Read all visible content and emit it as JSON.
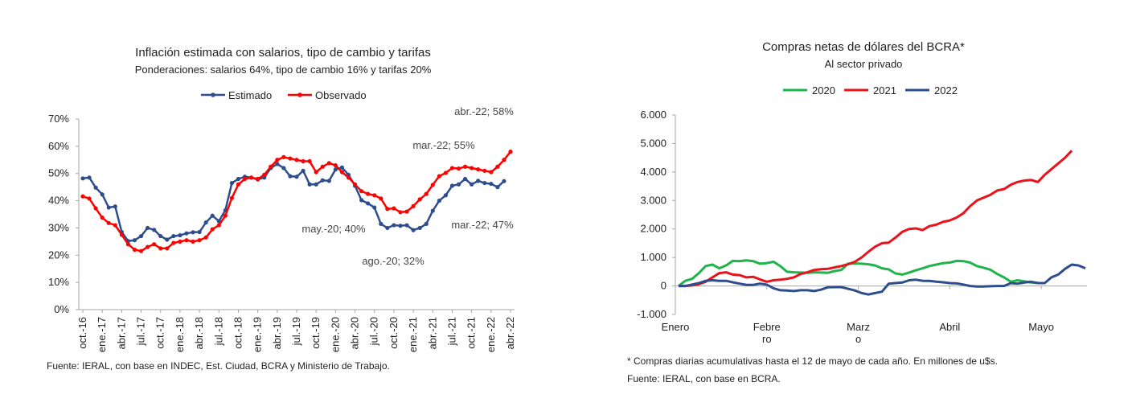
{
  "colors": {
    "estimado": "#2E4D8C",
    "observado": "#FF0000",
    "y2020": "#1FB44B",
    "y2021": "#E8131B",
    "y2022": "#2E4D8C",
    "axis": "#a6a6a6"
  },
  "left_source": "Fuente: IERAL, con base en INDEC, Est. Ciudad, BCRA y Ministerio de Trabajo.",
  "right_footnote": "* Compras diarias acumulativas hasta el 12 de mayo de cada año. En millones de u$s.",
  "right_source": "Fuente: IERAL, con base en BCRA.",
  "chart_data": [
    {
      "type": "line",
      "title": "Inflación estimada con salarios, tipo de cambio y tarifas",
      "subtitle": "Ponderaciones: salarios 64%, tipo de cambio 16% y tarifas 20%",
      "xlabel": "",
      "ylabel": "",
      "ylim": [
        0,
        70
      ],
      "y_ticks": [
        "0%",
        "10%",
        "20%",
        "30%",
        "40%",
        "50%",
        "60%",
        "70%"
      ],
      "x_tick_labels": [
        "oct.-16",
        "ene.-17",
        "abr.-17",
        "jul.-17",
        "oct.-17",
        "ene.-18",
        "abr.-18",
        "jul.-18",
        "oct.-18",
        "ene.-19",
        "abr.-19",
        "jul.-19",
        "oct.-19",
        "ene.-20",
        "abr.-20",
        "jul.-20",
        "oct.-20",
        "ene.-21",
        "abr.-21",
        "jul.-21",
        "oct.-21",
        "ene.-22",
        "abr.-22"
      ],
      "legend_position": "top",
      "series": [
        {
          "name": "Estimado",
          "color_key": "estimado",
          "marker": "circle",
          "values": [
            48.2,
            48.5,
            44.8,
            42.3,
            37.5,
            37.9,
            28.5,
            25.2,
            25.5,
            27.0,
            30.0,
            29.3,
            27.0,
            25.7,
            27.0,
            27.3,
            28.0,
            28.4,
            28.5,
            32.0,
            34.5,
            32.5,
            36.5,
            46.5,
            48.0,
            48.8,
            48.5,
            47.8,
            48.5,
            52.0,
            53.5,
            52.0,
            49.0,
            48.8,
            51.0,
            46.0,
            46.0,
            47.5,
            47.3,
            51.5,
            52.2,
            49.5,
            45.5,
            40.2,
            39.0,
            37.5,
            31.5,
            30.0,
            31.0,
            30.8,
            31.0,
            29.2,
            30.0,
            31.5,
            36.3,
            40.0,
            42.0,
            45.5,
            46.0,
            48.0,
            46.0,
            47.3,
            46.5,
            46.2,
            45.0,
            47.2
          ]
        },
        {
          "name": "Observado",
          "color_key": "observado",
          "marker": "circle",
          "values": [
            41.6,
            40.8,
            37.2,
            33.8,
            31.8,
            31.0,
            27.5,
            24.0,
            22.0,
            21.5,
            23.0,
            24.0,
            22.5,
            22.5,
            24.5,
            25.0,
            25.5,
            25.0,
            25.5,
            26.5,
            29.5,
            31.0,
            34.5,
            41.0,
            46.0,
            48.0,
            48.5,
            48.0,
            49.5,
            52.5,
            55.0,
            56.0,
            55.5,
            55.0,
            54.5,
            54.5,
            50.5,
            52.5,
            53.8,
            53.0,
            50.5,
            48.5,
            46.0,
            43.5,
            42.5,
            42.0,
            40.8,
            37.0,
            37.2,
            35.8,
            36.0,
            38.0,
            40.5,
            42.5,
            45.8,
            49.0,
            50.2,
            52.0,
            51.8,
            52.5,
            52.0,
            51.5,
            51.0,
            50.5,
            52.5,
            55.0,
            58.0
          ]
        }
      ],
      "annotations": [
        {
          "text": "abr.-22; 58%",
          "x_label": "abr.-22",
          "value": 58
        },
        {
          "text": "mar.-22; 55%",
          "x_label": "mar.-22",
          "value": 55
        },
        {
          "text": "may.-20; 40%",
          "x_label": "may.-20",
          "value": 40
        },
        {
          "text": "mar.-22; 47%",
          "x_label": "mar.-22",
          "value": 47
        },
        {
          "text": "ago.-20; 32%",
          "x_label": "ago.-20",
          "value": 32
        }
      ]
    },
    {
      "type": "line",
      "title": "Compras netas de dólares del BCRA*",
      "subtitle": "Al sector privado",
      "xlabel": "",
      "ylabel": "",
      "ylim": [
        -1000,
        6000
      ],
      "y_ticks": [
        "-1.000",
        "0",
        "1.000",
        "2.000",
        "3.000",
        "4.000",
        "5.000",
        "6.000"
      ],
      "x_tick_labels": [
        "Enero",
        "Febre ro",
        "Marz o",
        "Abril",
        "Mayo"
      ],
      "legend_position": "top",
      "series": [
        {
          "name": "2020",
          "color_key": "y2020",
          "values": [
            0,
            180,
            250,
            450,
            700,
            750,
            620,
            720,
            880,
            870,
            900,
            870,
            780,
            800,
            850,
            700,
            500,
            480,
            470,
            460,
            480,
            470,
            460,
            520,
            560,
            780,
            790,
            780,
            760,
            720,
            620,
            580,
            440,
            400,
            470,
            550,
            620,
            700,
            750,
            800,
            820,
            880,
            870,
            820,
            700,
            640,
            570,
            420,
            300,
            150,
            200,
            160,
            120,
            110
          ]
        },
        {
          "name": "2021",
          "color_key": "y2021",
          "values": [
            0,
            0,
            20,
            60,
            150,
            300,
            450,
            480,
            400,
            380,
            300,
            320,
            230,
            150,
            200,
            220,
            250,
            300,
            420,
            480,
            560,
            590,
            600,
            650,
            700,
            760,
            850,
            1000,
            1200,
            1380,
            1500,
            1520,
            1700,
            1900,
            2000,
            2020,
            1960,
            2100,
            2150,
            2250,
            2300,
            2400,
            2550,
            2800,
            3000,
            3100,
            3200,
            3350,
            3400,
            3550,
            3650,
            3700,
            3720,
            3650,
            3900,
            4100,
            4300,
            4500,
            4750
          ]
        },
        {
          "name": "2022",
          "color_key": "y2022",
          "values": [
            0,
            0,
            50,
            100,
            180,
            200,
            180,
            180,
            130,
            80,
            40,
            40,
            80,
            50,
            -80,
            -150,
            -160,
            -180,
            -150,
            -150,
            -180,
            -130,
            -50,
            -40,
            -40,
            -100,
            -160,
            -250,
            -300,
            -250,
            -200,
            80,
            100,
            120,
            200,
            220,
            180,
            180,
            150,
            130,
            100,
            90,
            50,
            0,
            -20,
            -20,
            -10,
            0,
            0,
            100,
            80,
            120,
            150,
            100,
            100,
            300,
            400,
            600,
            750,
            720,
            620
          ]
        }
      ]
    }
  ]
}
